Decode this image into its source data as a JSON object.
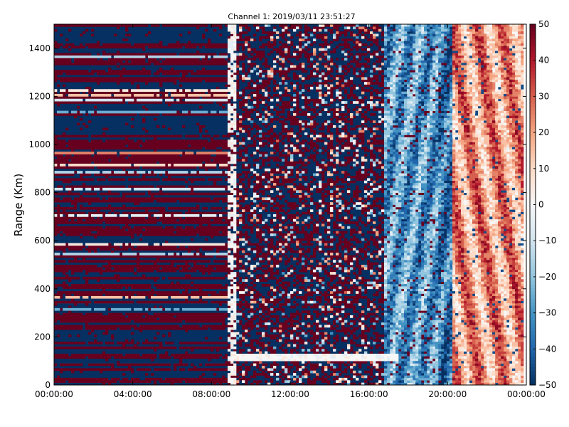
{
  "chart_data": {
    "type": "heatmap",
    "title": "Channel 1: 2019/03/11 23:51:27",
    "xlabel": "",
    "ylabel": "Range (Km)",
    "x_ticks": [
      "00:00:00",
      "04:00:00",
      "08:00:00",
      "12:00:00",
      "16:00:00",
      "20:00:00",
      "00:00:00"
    ],
    "x_tick_hours": [
      0,
      4,
      8,
      12,
      16,
      20,
      24
    ],
    "xlim_hours": [
      0,
      24
    ],
    "y_ticks": [
      0,
      200,
      400,
      600,
      800,
      1000,
      1200,
      1400
    ],
    "ylim": [
      0,
      1500
    ],
    "colorbar": {
      "ticks": [
        50,
        40,
        30,
        20,
        10,
        0,
        -10,
        -20,
        -30,
        -40,
        -50
      ],
      "tick_labels": [
        "50",
        "40",
        "30",
        "20",
        "10",
        "0",
        "−10",
        "−20",
        "−30",
        "−40",
        "−50"
      ],
      "vmin": -50,
      "vmax": 50,
      "colormap": "RdBu_r",
      "colors": [
        "#053061",
        "#2166ac",
        "#4393c3",
        "#92c5de",
        "#d1e5f0",
        "#f7f7f7",
        "#fddbc7",
        "#f4a582",
        "#d6604d",
        "#b2182b",
        "#67001f"
      ]
    },
    "regimes": [
      {
        "hours": [
          0.0,
          8.8
        ],
        "pattern": "horizontal bands, saturated ±50"
      },
      {
        "hours": [
          8.8,
          9.3
        ],
        "pattern": "near-zero vertical strip"
      },
      {
        "hours": [
          9.3,
          16.8
        ],
        "pattern": "random saturated noise ±50"
      },
      {
        "hours": [
          16.8,
          20.3
        ],
        "pattern": "negative values -10 to -45, diagonal streaks"
      },
      {
        "hours": [
          20.3,
          23.9
        ],
        "pattern": "positive values +10 to +50, diagonal streaks"
      }
    ],
    "features": [
      {
        "description": "near-zero horizontal band",
        "hours": [
          9.0,
          17.5
        ],
        "range_km": [
          100,
          130
        ]
      }
    ]
  }
}
